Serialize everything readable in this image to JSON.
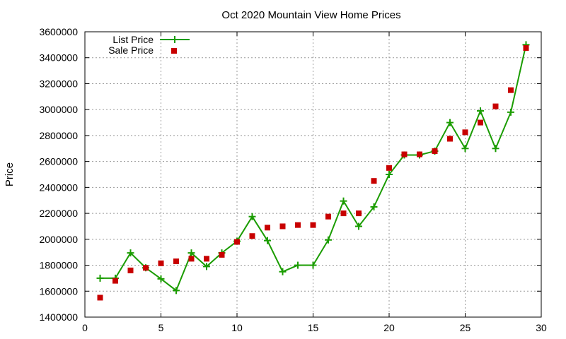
{
  "chart_data": {
    "type": "line",
    "title": "Oct 2020 Mountain View Home Prices",
    "xlabel": "",
    "ylabel": "Price",
    "xlim": [
      0,
      30
    ],
    "ylim": [
      1400000,
      3600000
    ],
    "grid": true,
    "legend_position": "top-left",
    "x_ticks": [
      "0",
      "5",
      "10",
      "15",
      "20",
      "25",
      "30"
    ],
    "y_ticks": [
      "1400000",
      "1600000",
      "1800000",
      "2000000",
      "2200000",
      "2400000",
      "2600000",
      "2800000",
      "3000000",
      "3200000",
      "3400000",
      "3600000"
    ],
    "series": [
      {
        "name": "List Price",
        "style": "line+cross",
        "color": "#1a9c00",
        "x": [
          1,
          2,
          3,
          4,
          5,
          6,
          7,
          8,
          9,
          10,
          11,
          12,
          13,
          14,
          15,
          16,
          17,
          18,
          19,
          20,
          21,
          22,
          23,
          24,
          25,
          26,
          27,
          28,
          29
        ],
        "values": [
          1700000,
          1700000,
          1895000,
          1780000,
          1695000,
          1605000,
          1895000,
          1790000,
          1895000,
          1985000,
          2175000,
          1990000,
          1750000,
          1800000,
          1800000,
          1995000,
          2295000,
          2100000,
          2250000,
          2500000,
          2650000,
          2650000,
          2680000,
          2900000,
          2700000,
          2990000,
          2700000,
          2980000,
          3500000
        ]
      },
      {
        "name": "Sale Price",
        "style": "square",
        "color": "#c80000",
        "x": [
          1,
          2,
          3,
          4,
          5,
          6,
          7,
          8,
          9,
          10,
          11,
          12,
          13,
          14,
          15,
          16,
          17,
          18,
          19,
          20,
          21,
          22,
          23,
          24,
          25,
          26,
          27,
          28,
          29
        ],
        "values": [
          1550000,
          1680000,
          1760000,
          1780000,
          1815000,
          1830000,
          1850000,
          1850000,
          1880000,
          1980000,
          2025000,
          2090000,
          2100000,
          2110000,
          2110000,
          2175000,
          2200000,
          2200000,
          2450000,
          2550000,
          2655000,
          2655000,
          2680000,
          2775000,
          2825000,
          2900000,
          3025000,
          3150000,
          3475000
        ]
      }
    ]
  }
}
